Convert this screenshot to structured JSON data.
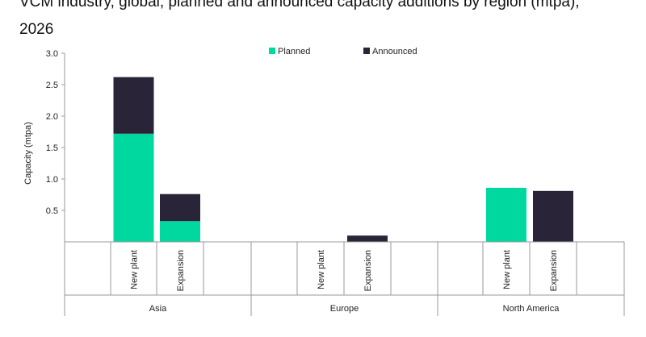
{
  "title": "VCM industry, global, planned and announced capacity additions by region (mtpa),\n2026",
  "chart_data": {
    "type": "bar",
    "stacked": true,
    "title": "VCM industry, global, planned and announced capacity additions by region (mtpa), 2026",
    "ylabel": "Capacity (mtpa)",
    "xlabel": "",
    "ylim": [
      0,
      3.0
    ],
    "yticks": [
      "3.0",
      "2.5",
      "2.0",
      "1.5",
      "1.0",
      "0.5"
    ],
    "grid": false,
    "legend_position": "top-center",
    "groups": [
      "Asia",
      "Europe",
      "North America"
    ],
    "categories": [
      "New plant",
      "Expansion",
      "New plant",
      "Expansion",
      "New plant",
      "Expansion"
    ],
    "category_groups": [
      "Asia",
      "Asia",
      "Europe",
      "Europe",
      "North America",
      "North America"
    ],
    "series": [
      {
        "name": "Planned",
        "color": "#00d8a0",
        "values": [
          1.72,
          0.33,
          0,
          0,
          0.86,
          0
        ]
      },
      {
        "name": "Announced",
        "color": "#2a2438",
        "values": [
          0.9,
          0.43,
          0,
          0.1,
          0,
          0.81
        ]
      }
    ]
  }
}
